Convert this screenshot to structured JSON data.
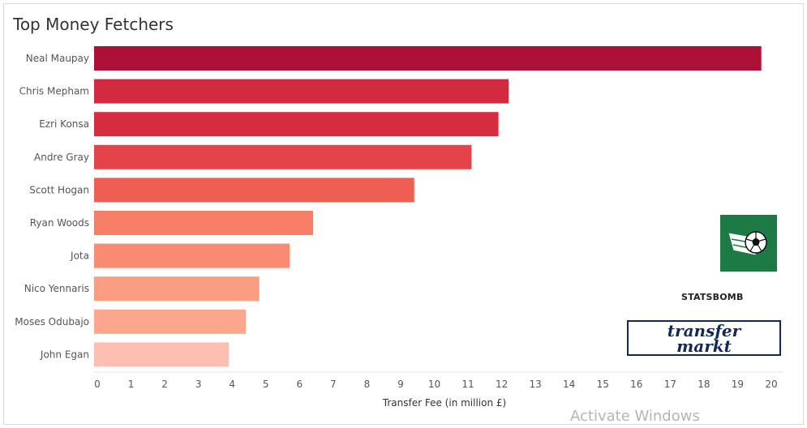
{
  "title": "Top Money Fetchers",
  "watermark": "Activate Windows",
  "logos": {
    "statsbomb_text": "STATSBOMB",
    "transfermarkt_line1": "transfer",
    "transfermarkt_line2": "markt"
  },
  "colors": {
    "bar_max": "#ad1236",
    "bar_min": "#fdbfb2",
    "axis_text": "#555555",
    "soccer_logo_bg": "#1e7a44",
    "transfermarkt_navy": "#12285a"
  },
  "chart_data": {
    "type": "bar",
    "orientation": "horizontal",
    "title": "Top Money Fetchers",
    "xlabel": "Transfer Fee (in million £)",
    "ylabel": "",
    "xlim": [
      0,
      20
    ],
    "xticks": [
      0,
      1,
      2,
      3,
      4,
      5,
      6,
      7,
      8,
      9,
      10,
      11,
      12,
      13,
      14,
      15,
      16,
      17,
      18,
      19,
      20
    ],
    "grid": false,
    "categories": [
      "Neal Maupay",
      "Chris Mepham",
      "Ezri Konsa",
      "Andre Gray",
      "Scott Hogan",
      "Ryan Woods",
      "Jota",
      "Nico Yennaris",
      "Moses Odubajo",
      "John Egan"
    ],
    "values": [
      19.8,
      12.3,
      12.0,
      11.2,
      9.5,
      6.5,
      5.8,
      4.9,
      4.5,
      4.0
    ],
    "bar_colors": [
      "#ad1236",
      "#d22b3f",
      "#d52d3f",
      "#e2444a",
      "#ef5e52",
      "#f67e66",
      "#fa8b73",
      "#fb9d83",
      "#fca68d",
      "#fdbfb2"
    ]
  }
}
